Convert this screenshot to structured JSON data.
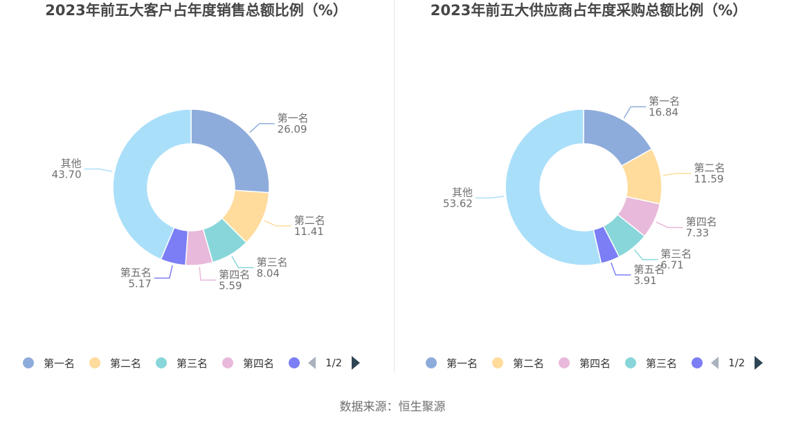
{
  "chart_data": [
    {
      "type": "pie",
      "title": "2023年前五大客户占年度销售总额比例（%）",
      "slices": [
        {
          "label": "第一名",
          "value": 26.09,
          "value_text": "26.09",
          "color": "#8eacdb"
        },
        {
          "label": "第二名",
          "value": 11.41,
          "value_text": "11.41",
          "color": "#ffdb9c"
        },
        {
          "label": "第三名",
          "value": 8.04,
          "value_text": "8.04",
          "color": "#88d6da"
        },
        {
          "label": "第四名",
          "value": 5.59,
          "value_text": "5.59",
          "color": "#e8b9da"
        },
        {
          "label": "第五名",
          "value": 5.17,
          "value_text": "5.17",
          "color": "#7b7ef5"
        },
        {
          "label": "其他",
          "value": 43.7,
          "value_text": "43.70",
          "color": "#aadff9"
        }
      ],
      "legend": {
        "items": [
          "第一名",
          "第二名",
          "第三名",
          "第四名"
        ],
        "page": "1/2",
        "placement": "bottom"
      }
    },
    {
      "type": "pie",
      "title": "2023年前五大供应商占年度采购总额比例（%）",
      "slices": [
        {
          "label": "第一名",
          "value": 16.84,
          "value_text": "16.84",
          "color": "#8eacdb"
        },
        {
          "label": "第二名",
          "value": 11.59,
          "value_text": "11.59",
          "color": "#ffdb9c"
        },
        {
          "label": "第四名",
          "value": 7.33,
          "value_text": "7.33",
          "color": "#e8b9da"
        },
        {
          "label": "第三名",
          "value": 6.71,
          "value_text": "6.71",
          "color": "#88d6da"
        },
        {
          "label": "第五名",
          "value": 3.91,
          "value_text": "3.91",
          "color": "#7b7ef5"
        },
        {
          "label": "其他",
          "value": 53.62,
          "value_text": "53.62",
          "color": "#aadff9"
        }
      ],
      "legend": {
        "items": [
          "第一名",
          "第二名",
          "第四名",
          "第三名"
        ],
        "page": "1/2",
        "placement": "bottom"
      }
    }
  ],
  "source": "数据来源：恒生聚源"
}
